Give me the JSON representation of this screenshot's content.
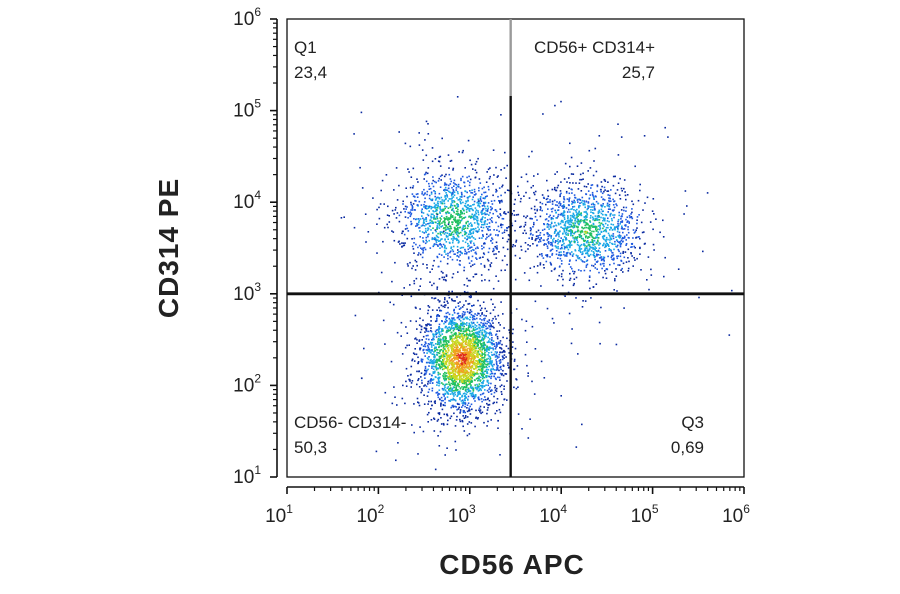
{
  "chart_data": {
    "type": "scatter",
    "title": "",
    "xlabel": "CD56 APC",
    "ylabel": "CD314 PE",
    "x_scale": "log",
    "y_scale": "log",
    "xlim": [
      10,
      1000000
    ],
    "ylim": [
      10,
      1000000
    ],
    "x_tick_labels": [
      {
        "value": 10,
        "base": "10",
        "exp": "1"
      },
      {
        "value": 100,
        "base": "10",
        "exp": "2"
      },
      {
        "value": 1000,
        "base": "10",
        "exp": "3"
      },
      {
        "value": 10000,
        "base": "10",
        "exp": "4"
      },
      {
        "value": 100000,
        "base": "10",
        "exp": "5"
      },
      {
        "value": 1000000,
        "base": "10",
        "exp": "6"
      }
    ],
    "y_tick_labels": [
      {
        "value": 10,
        "base": "10",
        "exp": "1"
      },
      {
        "value": 100,
        "base": "10",
        "exp": "2"
      },
      {
        "value": 1000,
        "base": "10",
        "exp": "3"
      },
      {
        "value": 10000,
        "base": "10",
        "exp": "4"
      },
      {
        "value": 100000,
        "base": "10",
        "exp": "5"
      },
      {
        "value": 1000000,
        "base": "10",
        "exp": "6"
      }
    ],
    "quadrant_gate": {
      "x": 2800,
      "y": 1000
    },
    "quadrants": {
      "top_left": {
        "name": "Q1",
        "value": "23,4"
      },
      "top_right": {
        "name": "CD56+ CD314+",
        "value": "25,7"
      },
      "bottom_left": {
        "name": "CD56- CD314-",
        "value": "50,3"
      },
      "bottom_right": {
        "name": "Q3",
        "value": "0,69"
      }
    },
    "populations": [
      {
        "label": "CD56- CD314-",
        "center_x": 800,
        "center_y": 200,
        "spread_decades_x": 0.22,
        "spread_decades_y": 0.28,
        "events": 2600
      },
      {
        "label": "Q1",
        "center_x": 650,
        "center_y": 6500,
        "spread_decades_x": 0.3,
        "spread_decades_y": 0.27,
        "events": 1300
      },
      {
        "label": "CD56+ CD314+",
        "center_x": 18000,
        "center_y": 5000,
        "spread_decades_x": 0.3,
        "spread_decades_y": 0.25,
        "events": 1400
      }
    ],
    "density_colors": [
      "#0a2aa0",
      "#1f5ae0",
      "#1aa8e6",
      "#20c060",
      "#c8d820",
      "#f0a020",
      "#e02a1a"
    ],
    "grid": false,
    "legend": "none"
  }
}
